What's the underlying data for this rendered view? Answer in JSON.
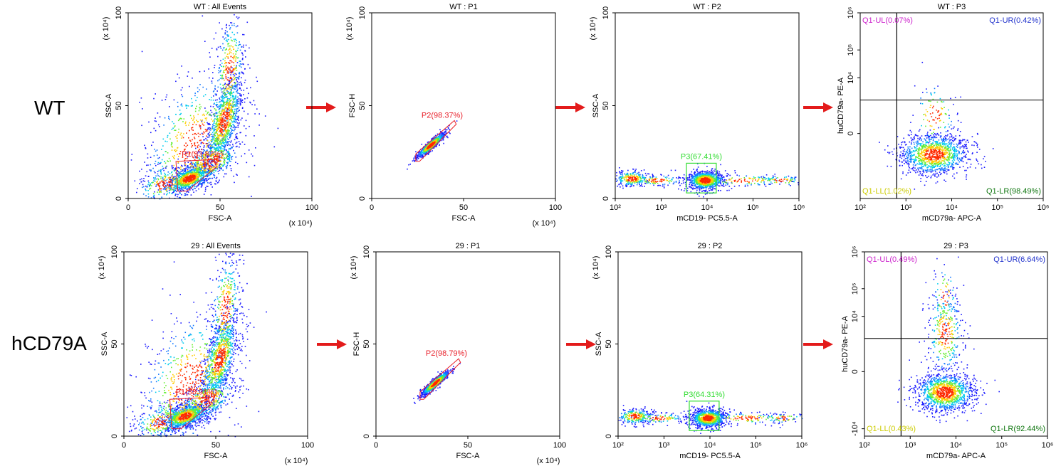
{
  "rows": [
    {
      "label": "WT"
    },
    {
      "label": "hCD79A"
    }
  ],
  "colors": {
    "gate_red": "#e8202a",
    "gate_green": "#33dd33",
    "q_magenta": "#cc22cc",
    "q_blue": "#2233cc",
    "q_yellow": "#cccc00",
    "q_green": "#117711",
    "arrow": "#e31b1b"
  },
  "chart_data": [
    {
      "type": "scatter",
      "row": 0,
      "col": 0,
      "title": "WT : All Events",
      "xlabel": "FSC-A",
      "ylabel": "SSC-A",
      "xlim": [
        0,
        100
      ],
      "ylim": [
        0,
        100
      ],
      "xticks": [
        "0",
        "50",
        "100"
      ],
      "yticks": [
        "0",
        "50",
        "100"
      ],
      "x_unit": "(x 10⁴)",
      "y_unit": "(x 10⁴)",
      "gate": {
        "name": "P1",
        "label": "P1(33.87%)",
        "percent": 33.87,
        "color": "#e8202a",
        "polygon": [
          [
            27,
            4
          ],
          [
            32,
            4
          ],
          [
            48,
            17
          ],
          [
            47,
            21
          ],
          [
            26,
            20
          ]
        ]
      }
    },
    {
      "type": "scatter",
      "row": 0,
      "col": 1,
      "title": "WT : P1",
      "xlabel": "FSC-A",
      "ylabel": "FSC-H",
      "xlim": [
        0,
        100
      ],
      "ylim": [
        0,
        100
      ],
      "xticks": [
        "0",
        "50",
        "100"
      ],
      "yticks": [
        "0",
        "50",
        "100"
      ],
      "x_unit": "(x 10⁴)",
      "y_unit": "(x 10⁴)",
      "gate": {
        "name": "P2",
        "label": "P2(98.37%)",
        "percent": 98.37,
        "color": "#e8202a",
        "polygon": [
          [
            24,
            20
          ],
          [
            26,
            20
          ],
          [
            46,
            40
          ],
          [
            45,
            42
          ],
          [
            24,
            24
          ]
        ]
      }
    },
    {
      "type": "scatter",
      "row": 0,
      "col": 2,
      "title": "WT : P2",
      "xlabel": "mCD19- PC5.5-A",
      "ylabel": "SSC-A",
      "xlim": [
        2,
        6
      ],
      "ylim": [
        0,
        100
      ],
      "xticks": [
        "10²",
        "10³",
        "10⁴",
        "10⁵",
        "10⁶"
      ],
      "yticks": [
        "0",
        "50",
        "100"
      ],
      "y_unit": "(x 10⁴)",
      "gate": {
        "name": "P3",
        "label": "P3(67.41%)",
        "percent": 67.41,
        "color": "#33dd33",
        "rect": [
          3.55,
          3,
          4.2,
          19
        ]
      }
    },
    {
      "type": "scatter",
      "row": 0,
      "col": 3,
      "title": "WT : P3",
      "xlabel": "mCD79a- APC-A",
      "ylabel": "huCD79a- PE-A",
      "xlim": [
        2,
        6
      ],
      "ylim": [
        -4,
        6
      ],
      "xticks": [
        "10²",
        "10³",
        "10⁴",
        "10⁵",
        "10⁶"
      ],
      "yticks": [
        "0",
        "10⁴",
        "10⁵",
        "10⁶"
      ],
      "quadrants": [
        {
          "name": "Q1-UL",
          "label": "Q1-UL(0.07%)",
          "percent": 0.07
        },
        {
          "name": "Q1-UR",
          "label": "Q1-UR(0.42%)",
          "percent": 0.42
        },
        {
          "name": "Q1-LL",
          "label": "Q1-LL(1.02%)",
          "percent": 1.02
        },
        {
          "name": "Q1-LR",
          "label": "Q1-LR(98.49%)",
          "percent": 98.49
        }
      ],
      "divider": {
        "x": 2.8,
        "y": 1.3
      }
    },
    {
      "type": "scatter",
      "row": 1,
      "col": 0,
      "title": "29 : All Events",
      "xlabel": "FSC-A",
      "ylabel": "SSC-A",
      "xlim": [
        0,
        100
      ],
      "ylim": [
        0,
        100
      ],
      "xticks": [
        "0",
        "50",
        "100"
      ],
      "yticks": [
        "0",
        "50",
        "100"
      ],
      "x_unit": "(x 10⁴)",
      "y_unit": "(x 10⁴)",
      "gate": {
        "name": "P1",
        "label": "P1(38.91%)",
        "percent": 38.91,
        "color": "#e8202a",
        "polygon": [
          [
            26,
            4
          ],
          [
            31,
            4
          ],
          [
            47,
            17
          ],
          [
            46,
            21
          ],
          [
            25,
            20
          ]
        ]
      }
    },
    {
      "type": "scatter",
      "row": 1,
      "col": 1,
      "title": "29 : P1",
      "xlabel": "FSC-A",
      "ylabel": "FSC-H",
      "xlim": [
        0,
        100
      ],
      "ylim": [
        0,
        100
      ],
      "xticks": [
        "0",
        "50",
        "100"
      ],
      "yticks": [
        "0",
        "50",
        "100"
      ],
      "x_unit": "(x 10⁴)",
      "y_unit": "(x 10⁴)",
      "gate": {
        "name": "P2",
        "label": "P2(98.79%)",
        "percent": 98.79,
        "color": "#e8202a",
        "polygon": [
          [
            24,
            20
          ],
          [
            26,
            20
          ],
          [
            46,
            40
          ],
          [
            45,
            42
          ],
          [
            24,
            24
          ]
        ]
      }
    },
    {
      "type": "scatter",
      "row": 1,
      "col": 2,
      "title": "29 : P2",
      "xlabel": "mCD19- PC5.5-A",
      "ylabel": "SSC-A",
      "xlim": [
        2,
        6
      ],
      "ylim": [
        0,
        100
      ],
      "xticks": [
        "10²",
        "10³",
        "10⁴",
        "10⁵",
        "10⁶"
      ],
      "yticks": [
        "0",
        "50",
        "100"
      ],
      "y_unit": "(x 10⁴)",
      "gate": {
        "name": "P3",
        "label": "P3(64.31%)",
        "percent": 64.31,
        "color": "#33dd33",
        "rect": [
          3.55,
          3,
          4.2,
          19
        ]
      }
    },
    {
      "type": "scatter",
      "row": 1,
      "col": 3,
      "title": "29 : P3",
      "xlabel": "mCD79a- APC-A",
      "ylabel": "huCD79a- PE-A",
      "xlim": [
        2,
        6
      ],
      "ylim": [
        -4,
        6
      ],
      "xticks": [
        "10²",
        "10³",
        "10⁴",
        "10⁵",
        "10⁶"
      ],
      "yticks": [
        "-10⁴",
        "0",
        "10⁴",
        "10⁵",
        "10⁶"
      ],
      "quadrants": [
        {
          "name": "Q1-UL",
          "label": "Q1-UL(0.49%)",
          "percent": 0.49
        },
        {
          "name": "Q1-UR",
          "label": "Q1-UR(6.64%)",
          "percent": 6.64
        },
        {
          "name": "Q1-LL",
          "label": "Q1-LL(0.43%)",
          "percent": 0.43
        },
        {
          "name": "Q1-LR",
          "label": "Q1-LR(92.44%)",
          "percent": 92.44
        }
      ],
      "divider": {
        "x": 2.8,
        "y": 1.3
      }
    }
  ]
}
